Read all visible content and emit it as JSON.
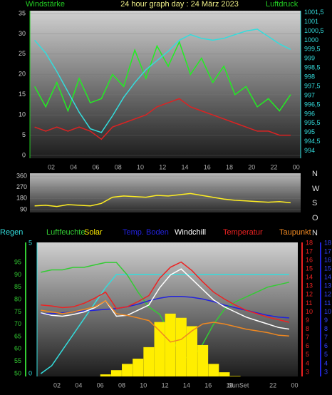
{
  "chart_data": [
    {
      "type": "line",
      "title": "24 hour graph day : 24 März 2023",
      "ylabel": "Windstärke",
      "y2label": "Luftdruck",
      "x": [
        0.5,
        1.5,
        2.5,
        3.5,
        4.5,
        5.5,
        6.5,
        7.5,
        8.5,
        9.5,
        10.5,
        11.5,
        12.5,
        13.5,
        14.5,
        15.5,
        16.5,
        17.5,
        18.5,
        19.5,
        20.5,
        21.5,
        22.5,
        23.5
      ],
      "xlim": [
        0.08,
        24.4
      ],
      "xticks": [
        {
          "value": 2,
          "label": "02"
        },
        {
          "value": 4,
          "label": "04"
        },
        {
          "value": 6,
          "label": "06"
        },
        {
          "value": 8,
          "label": "08"
        },
        10,
        12,
        14,
        16,
        18,
        20,
        22,
        {
          "value": 24,
          "label": "00"
        }
      ],
      "ylim": [
        -0.7,
        35.7
      ],
      "yticks": [
        0,
        5,
        10,
        15,
        20,
        25,
        30,
        35
      ],
      "y2lim": [
        993.6,
        1001.6
      ],
      "y2ticks": [
        994,
        {
          "value": 994.5,
          "label": "994,5"
        },
        995,
        {
          "value": 995.5,
          "label": "995,5"
        },
        996,
        {
          "value": 996.5,
          "label": "996,5"
        },
        997,
        {
          "value": 997.5,
          "label": "997,5"
        },
        998,
        {
          "value": 998.5,
          "label": "998,5"
        },
        999,
        {
          "value": 999.5,
          "label": "999,5"
        },
        1000,
        {
          "value": 1000.5,
          "label": "1000,5"
        },
        1001,
        {
          "value": 1001.5,
          "label": "1001,5"
        }
      ],
      "series": [
        {
          "color": "#22ee22",
          "values": [
            17,
            12,
            18,
            11,
            19,
            13,
            14,
            20,
            17,
            26,
            19,
            27,
            22,
            28,
            20,
            24,
            18,
            22,
            15,
            17,
            12,
            14,
            11,
            15
          ]
        },
        {
          "color": "#dd2222",
          "values": [
            7,
            6,
            7,
            6,
            7,
            6,
            4,
            7,
            8,
            9,
            10,
            12,
            13,
            14,
            12,
            11,
            10,
            9,
            8,
            7,
            6,
            6,
            5,
            5
          ]
        },
        {
          "color": "#33dddd",
          "axis": "y2",
          "values": [
            1000.0,
            999.3,
            998.3,
            997.2,
            996.1,
            995.2,
            995.0,
            995.9,
            996.9,
            997.7,
            998.4,
            998.9,
            999.4,
            1000.0,
            1000.3,
            1000.1,
            1000.0,
            1000.1,
            1000.3,
            1000.5,
            1000.6,
            1000.2,
            999.8,
            999.5
          ]
        }
      ]
    },
    {
      "type": "line",
      "x": [
        0.5,
        1.5,
        2.5,
        3.5,
        4.5,
        5.5,
        6.5,
        7.5,
        8.5,
        9.5,
        10.5,
        11.5,
        12.5,
        13.5,
        14.5,
        15.5,
        16.5,
        17.5,
        18.5,
        19.5,
        20.5,
        21.5,
        22.5,
        23.5
      ],
      "xlim": [
        0.08,
        24.4
      ],
      "ylim": [
        67,
        383
      ],
      "yticks": [
        90,
        180,
        270,
        360
      ],
      "compass": [
        "N",
        "W",
        "S",
        "O",
        "N"
      ],
      "series": [
        {
          "color": "#ffee22",
          "values": [
            120,
            125,
            115,
            130,
            125,
            120,
            140,
            190,
            200,
            195,
            190,
            205,
            200,
            210,
            220,
            205,
            190,
            175,
            165,
            160,
            155,
            150,
            155,
            145
          ]
        }
      ]
    },
    {
      "type": "line",
      "x": [
        0.5,
        1.5,
        2.5,
        3.5,
        4.5,
        5.5,
        6.5,
        7.5,
        8.5,
        9.5,
        10.5,
        11.5,
        12.5,
        13.5,
        14.5,
        15.5,
        16.5,
        17.5,
        18.5,
        19.5,
        20.5,
        21.5,
        22.5,
        23.5
      ],
      "xlim": [
        0.15,
        24.3
      ],
      "xticks": [
        {
          "value": 2,
          "label": "02"
        },
        {
          "value": 4,
          "label": "04"
        },
        {
          "value": 6,
          "label": "06"
        },
        {
          "value": 8,
          "label": "08"
        },
        10,
        12,
        14,
        16,
        18,
        22,
        {
          "value": 24,
          "label": "00"
        }
      ],
      "ylim": [
        48.85,
        103.1
      ],
      "yticks": [
        50,
        55,
        60,
        65,
        70,
        75,
        80,
        85,
        90,
        95
      ],
      "rain_lim": [
        -0.11,
        5.03
      ],
      "rain_ticks": [
        0,
        5
      ],
      "y2lim": [
        2.5,
        18.08
      ],
      "y2ticks": [
        3,
        4,
        5,
        6,
        7,
        8,
        9,
        10,
        11,
        12,
        13,
        14,
        15,
        16,
        17,
        18
      ],
      "y3lim": [
        2.5,
        18.08
      ],
      "y3ticks": [
        3,
        4,
        5,
        6,
        7,
        8,
        9,
        10,
        11,
        12,
        13,
        14,
        15,
        16,
        17,
        18
      ],
      "solar_lim": [
        0,
        1280
      ],
      "annotations": [
        {
          "text": "SunSet",
          "x": 18.8
        }
      ],
      "series": [
        {
          "name": "Regen",
          "color": "#33dddd",
          "axis": "rain",
          "values": [
            0,
            0.3,
            0.9,
            1.5,
            2.1,
            2.7,
            3.3,
            3.8,
            3.8,
            3.8,
            3.8,
            3.8,
            3.8,
            3.8,
            3.8,
            3.8,
            3.8,
            3.8,
            3.8,
            3.8,
            3.8,
            3.8,
            3.8,
            3.8
          ]
        },
        {
          "name": "Luftfeuchte",
          "color": "#33cc33",
          "values": [
            91,
            92,
            92,
            93,
            93,
            94,
            95,
            95,
            90,
            83,
            77,
            74,
            66,
            57,
            56,
            62,
            70,
            76,
            79,
            81,
            83,
            85,
            86,
            87
          ]
        },
        {
          "name": "Solar",
          "color": "#ffee00",
          "axis": "solar",
          "values": [
            0,
            0,
            0,
            0,
            0,
            0,
            20,
            60,
            120,
            170,
            280,
            520,
            600,
            560,
            480,
            300,
            120,
            40,
            5,
            0,
            0,
            0,
            0,
            0
          ]
        },
        {
          "name": "Temp. Boden",
          "color": "#2222dd",
          "axis": "y3",
          "values": [
            9.8,
            9.8,
            9.9,
            10,
            10.1,
            10.2,
            10.3,
            10.4,
            10.6,
            10.9,
            11.3,
            11.6,
            11.8,
            11.8,
            11.7,
            11.5,
            11.2,
            10.8,
            10.5,
            10.2,
            9.9,
            9.6,
            9.4,
            9.3
          ]
        },
        {
          "name": "Windchill",
          "color": "#ffffff",
          "axis": "y2",
          "values": [
            9.9,
            9.6,
            9.5,
            9.7,
            10,
            10.5,
            11.3,
            9.5,
            9.6,
            10.2,
            10.8,
            12.8,
            14.3,
            15,
            13.8,
            12.6,
            11.4,
            10.6,
            10,
            9.4,
            9,
            8.6,
            8.2,
            8
          ]
        },
        {
          "name": "Temperatur",
          "color": "#ee2222",
          "axis": "y2",
          "values": [
            10.8,
            10.7,
            10.5,
            10.6,
            11,
            11.6,
            12.3,
            10.4,
            10.6,
            11.2,
            11.9,
            13.9,
            15.2,
            15.8,
            14.8,
            13.5,
            12.3,
            11.5,
            10.8,
            10.2,
            9.8,
            9.4,
            9.1,
            8.8
          ]
        },
        {
          "name": "Taupunkt",
          "color": "#ee8822",
          "axis": "y2",
          "values": [
            10.2,
            10,
            9.8,
            10,
            10.3,
            10.6,
            11.3,
            9.8,
            9.6,
            9.3,
            9,
            7.8,
            6.5,
            6.8,
            7.8,
            8.6,
            8.8,
            8.6,
            8.3,
            8,
            7.8,
            7.6,
            7.3,
            7.2
          ]
        }
      ]
    }
  ]
}
